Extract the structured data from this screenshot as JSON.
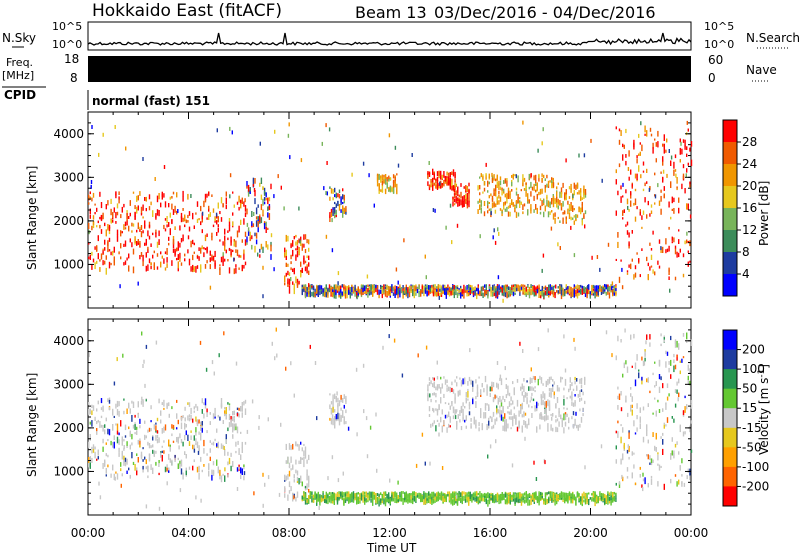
{
  "header": {
    "title": "Hokkaido East (fitACF)",
    "beam_label": "Beam 13",
    "date_range": "03/Dec/2016 - 04/Dec/2016"
  },
  "left_labels": {
    "nsky": "N.Sky",
    "freq": "Freq.",
    "freq_unit": "[MHz]",
    "cpid": "CPID"
  },
  "right_labels": {
    "nsearch": "N.Search",
    "nave": "Nave"
  },
  "cpid_text": "normal (fast) 151",
  "noise_panel": {
    "left_ticks": [
      "10^5",
      "10^0"
    ],
    "right_ticks": [
      "10^5",
      "10^0"
    ]
  },
  "freq_panel": {
    "left_ticks": [
      "18",
      "8"
    ],
    "right_ticks": [
      "60",
      "0"
    ]
  },
  "axes": {
    "ylabel": "Slant Range [km]",
    "xlabel": "Time UT",
    "y_ticks": [
      "1000",
      "2000",
      "3000",
      "4000"
    ],
    "x_ticks": [
      "00:00",
      "04:00",
      "08:00",
      "12:00",
      "16:00",
      "20:00",
      "00:00"
    ]
  },
  "colors": {
    "power_scale": [
      "#0000ff",
      "#1e3ca0",
      "#3c8c5a",
      "#78b45a",
      "#e6c81e",
      "#f09600",
      "#f05a00",
      "#ff0000"
    ],
    "velocity_scale": [
      "#ff0000",
      "#ff6400",
      "#ffa000",
      "#e6c81e",
      "#c8c8c8",
      "#64c832",
      "#289650",
      "#1e3ca0",
      "#0000ff"
    ],
    "ground_scatter": "#c8c8c8"
  },
  "chart_data": [
    {
      "type": "heatmap",
      "panel": "power",
      "x_unit": "hours UT",
      "xlim": [
        0,
        24
      ],
      "ylim": [
        0,
        4500
      ],
      "colorbar": {
        "label": "Power [dB]",
        "ticks": [
          "4",
          "8",
          "12",
          "16",
          "20",
          "24",
          "28"
        ],
        "range": [
          0,
          32
        ]
      },
      "echo_regions": [
        {
          "x": [
            0.0,
            6.3
          ],
          "y": [
            900,
            2700
          ],
          "level": "high"
        },
        {
          "x": [
            6.3,
            7.3
          ],
          "y": [
            1200,
            3000
          ],
          "level": "mixed"
        },
        {
          "x": [
            7.8,
            8.8
          ],
          "y": [
            400,
            1700
          ],
          "level": "high"
        },
        {
          "x": [
            8.5,
            21.0
          ],
          "y": [
            350,
            550
          ],
          "level": "mixed"
        },
        {
          "x": [
            9.6,
            10.3
          ],
          "y": [
            2100,
            2800
          ],
          "level": "mixed"
        },
        {
          "x": [
            11.5,
            12.3
          ],
          "y": [
            2700,
            3100
          ],
          "level": "medium"
        },
        {
          "x": [
            13.5,
            14.6
          ],
          "y": [
            2800,
            3200
          ],
          "level": "high"
        },
        {
          "x": [
            14.5,
            15.2
          ],
          "y": [
            2400,
            2900
          ],
          "level": "high"
        },
        {
          "x": [
            15.5,
            18.5
          ],
          "y": [
            2200,
            3100
          ],
          "level": "medium"
        },
        {
          "x": [
            18.5,
            19.8
          ],
          "y": [
            2000,
            2900
          ],
          "level": "medium"
        },
        {
          "x": [
            21.0,
            24.0
          ],
          "y": [
            700,
            4200
          ],
          "level": "high"
        }
      ]
    },
    {
      "type": "heatmap",
      "panel": "velocity",
      "x_unit": "hours UT",
      "xlim": [
        0,
        24
      ],
      "ylim": [
        0,
        4500
      ],
      "colorbar": {
        "label": "Velocity [m s^-1]",
        "ticks": [
          "200",
          "100",
          "50",
          "15",
          "-15",
          "-50",
          "-100",
          "-200"
        ],
        "range": [
          -250,
          250
        ]
      },
      "echo_regions": [
        {
          "x": [
            0.0,
            6.3
          ],
          "y": [
            900,
            2700
          ],
          "level": "mixed"
        },
        {
          "x": [
            7.8,
            8.8
          ],
          "y": [
            400,
            1700
          ],
          "level": "ground"
        },
        {
          "x": [
            8.5,
            21.0
          ],
          "y": [
            350,
            550
          ],
          "level": "positive"
        },
        {
          "x": [
            9.6,
            10.3
          ],
          "y": [
            2100,
            2800
          ],
          "level": "ground"
        },
        {
          "x": [
            13.5,
            19.8
          ],
          "y": [
            2000,
            3200
          ],
          "level": "ground"
        },
        {
          "x": [
            21.0,
            24.0
          ],
          "y": [
            700,
            4200
          ],
          "level": "mixed"
        }
      ]
    }
  ]
}
